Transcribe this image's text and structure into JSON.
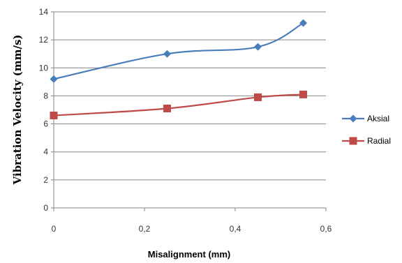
{
  "chart_data": {
    "type": "line",
    "title": "",
    "xlabel": "Misalignment (mm)",
    "ylabel": "Vibration Velocity (mm/s)",
    "xlim": [
      0,
      0.6
    ],
    "ylim": [
      0,
      14
    ],
    "x_ticks": [
      "0",
      "0,2",
      "0,4",
      "0,6"
    ],
    "y_ticks": [
      "0",
      "2",
      "4",
      "6",
      "8",
      "10",
      "12",
      "14"
    ],
    "grid": "horizontal",
    "legend": "right",
    "series": [
      {
        "name": "Aksial",
        "color": "#4a7ebb",
        "marker": "diamond",
        "x": [
          0,
          0.25,
          0.45,
          0.55
        ],
        "y": [
          9.2,
          11.0,
          11.5,
          13.2
        ]
      },
      {
        "name": "Radial",
        "color": "#be4b48",
        "marker": "square",
        "x": [
          0,
          0.25,
          0.45,
          0.55
        ],
        "y": [
          6.6,
          7.1,
          7.9,
          8.1
        ]
      }
    ]
  }
}
